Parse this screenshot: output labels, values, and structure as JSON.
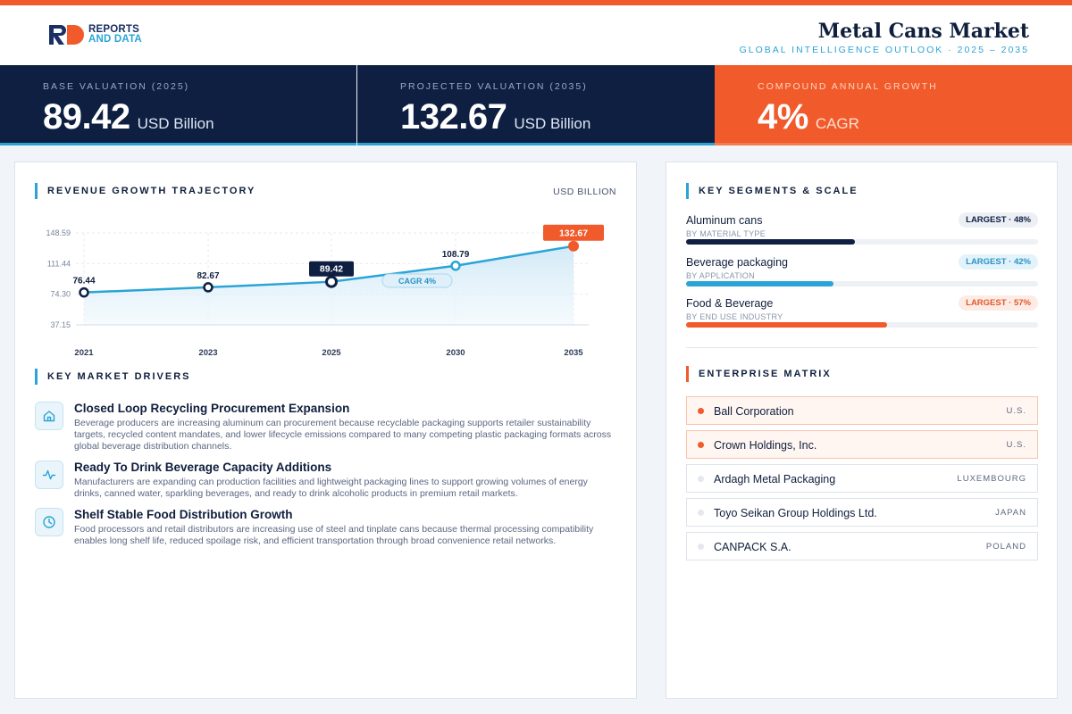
{
  "header": {
    "logo_line1": "REPORTS",
    "logo_line2": "AND DATA",
    "title": "Metal Cans Market",
    "subtitle": "GLOBAL INTELLIGENCE OUTLOOK  ·  2025 – 2035"
  },
  "kpis": [
    {
      "label": "BASE VALUATION (2025)",
      "value": "89.42",
      "unit": "USD Billion"
    },
    {
      "label": "PROJECTED VALUATION (2035)",
      "value": "132.67",
      "unit": "USD Billion"
    },
    {
      "label": "COMPOUND ANNUAL GROWTH",
      "value": "4%",
      "unit": "CAGR"
    }
  ],
  "revenue_section": {
    "title": "REVENUE GROWTH TRAJECTORY",
    "unit": "USD BILLION"
  },
  "chart_data": {
    "type": "area",
    "categories": [
      "2021",
      "2023",
      "2025",
      "2030",
      "2035"
    ],
    "values": [
      76.44,
      82.67,
      89.42,
      108.79,
      132.67
    ],
    "data_labels": [
      "76.44",
      "82.67",
      "89.42",
      "108.79",
      "132.67"
    ],
    "y_ticks": [
      "148.59",
      "111.44",
      "74.30",
      "37.15"
    ],
    "ylim": [
      37.15,
      148.59
    ],
    "annotation": "CAGR 4%",
    "highlight_points": [
      "2025",
      "2035"
    ],
    "grid": true,
    "colors": {
      "line": "#2aa4d6",
      "fill": "#d6ecf8",
      "marker": "#0e1f42",
      "end": "#f15a2b"
    }
  },
  "drivers_section": {
    "title": "KEY MARKET DRIVERS",
    "items": [
      {
        "icon": "home-icon",
        "title": "Closed Loop Recycling Procurement Expansion",
        "desc": "Beverage producers are increasing aluminum can procurement because recyclable packaging supports retailer sustainability targets, recycled content mandates, and lower lifecycle emissions compared to many competing plastic packaging formats across global beverage distribution channels."
      },
      {
        "icon": "pulse-icon",
        "title": "Ready To Drink Beverage Capacity Additions",
        "desc": "Manufacturers are expanding can production facilities and lightweight packaging lines to support growing volumes of energy drinks, canned water, sparkling beverages, and ready to drink alcoholic products in premium retail markets."
      },
      {
        "icon": "clock-icon",
        "title": "Shelf Stable Food Distribution Growth",
        "desc": "Food processors and retail distributors are increasing use of steel and tinplate cans because thermal processing compatibility enables long shelf life, reduced spoilage risk, and efficient transportation through broad convenience retail networks."
      }
    ]
  },
  "segments_section": {
    "title": "KEY SEGMENTS & SCALE",
    "items": [
      {
        "name": "Aluminum cans",
        "sub": "BY MATERIAL TYPE",
        "badge": "LARGEST · 48%",
        "share": 48,
        "color": "#0e1f42",
        "badge_bg": "#eceff4",
        "badge_fg": "#0e1f42"
      },
      {
        "name": "Beverage packaging",
        "sub": "BY APPLICATION",
        "badge": "LARGEST · 42%",
        "share": 42,
        "color": "#2aa4d6",
        "badge_bg": "#e3f3fb",
        "badge_fg": "#2a93c4"
      },
      {
        "name": "Food & Beverage",
        "sub": "BY END USE INDUSTRY",
        "badge": "LARGEST · 57%",
        "share": 57,
        "color": "#f15a2b",
        "badge_bg": "#fdece5",
        "badge_fg": "#e2572b"
      }
    ]
  },
  "enterprise_section": {
    "title": "ENTERPRISE MATRIX",
    "items": [
      {
        "name": "Ball Corporation",
        "country": "U.S.",
        "highlight": true
      },
      {
        "name": "Crown Holdings, Inc.",
        "country": "U.S.",
        "highlight": true
      },
      {
        "name": "Ardagh Metal Packaging",
        "country": "LUXEMBOURG",
        "highlight": false
      },
      {
        "name": "Toyo Seikan Group Holdings Ltd.",
        "country": "JAPAN",
        "highlight": false
      },
      {
        "name": "CANPACK S.A.",
        "country": "POLAND",
        "highlight": false
      }
    ]
  }
}
